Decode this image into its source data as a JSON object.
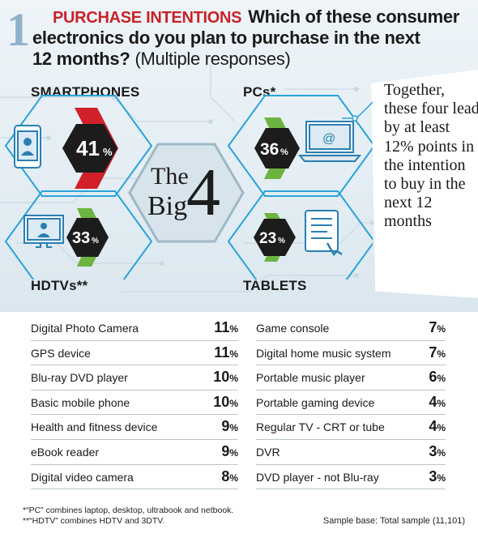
{
  "header": {
    "number": "1",
    "kicker": "PURCHASE INTENTIONS",
    "question_line1": "Which of these consumer",
    "question_line2": "electronics do you plan to purchase in the next",
    "question_line3_bold": "12 months?",
    "question_line3_rest": "(Multiple responses)"
  },
  "center": {
    "line1": "The",
    "line2": "Big",
    "big_number": "4"
  },
  "note": {
    "text": "Together, these four lead by at least 12% points in the intention to buy in the next 12 months"
  },
  "colors": {
    "red": "#d0202a",
    "green": "#6cb33f",
    "hex_outline": "#2aa4d8",
    "dark": "#1c1c1c"
  },
  "chart_data": [
    {
      "type": "bar",
      "title": "The Big 4",
      "categories": [
        "SMARTPHONES",
        "PCs*",
        "HDTVs**",
        "TABLETS"
      ],
      "values": [
        41,
        36,
        33,
        23
      ],
      "unit": "%"
    },
    {
      "type": "table",
      "categories": [
        "Digital Photo Camera",
        "GPS device",
        "Blu-ray DVD player",
        "Basic mobile phone",
        "Health and fitness device",
        "eBook reader",
        "Digital video camera",
        "Game console",
        "Digital home music system",
        "Portable music player",
        "Portable gaming device",
        "Regular TV - CRT or tube",
        "DVR",
        "DVD player - not Blu-ray"
      ],
      "values": [
        11,
        11,
        10,
        10,
        9,
        9,
        8,
        7,
        7,
        6,
        4,
        4,
        3,
        3
      ],
      "unit": "%"
    }
  ],
  "big4": [
    {
      "label": "SMARTPHONES",
      "value": "41",
      "unit": "%",
      "accent": "red",
      "icon": "smartphone-icon"
    },
    {
      "label": "PCs*",
      "value": "36",
      "unit": "%",
      "accent": "green",
      "icon": "laptop-icon"
    },
    {
      "label": "HDTVs**",
      "value": "33",
      "unit": "%",
      "accent": "green",
      "icon": "monitor-icon"
    },
    {
      "label": "TABLETS",
      "value": "23",
      "unit": "%",
      "accent": "green",
      "icon": "tablet-icon"
    }
  ],
  "table_left": [
    {
      "label": "Digital Photo Camera",
      "value": "11",
      "unit": "%"
    },
    {
      "label": "GPS device",
      "value": "11",
      "unit": "%"
    },
    {
      "label": "Blu-ray DVD player",
      "value": "10",
      "unit": "%"
    },
    {
      "label": "Basic mobile phone",
      "value": "10",
      "unit": "%"
    },
    {
      "label": "Health and fitness device",
      "value": "9",
      "unit": "%"
    },
    {
      "label": "eBook reader",
      "value": "9",
      "unit": "%"
    },
    {
      "label": "Digital video camera",
      "value": "8",
      "unit": "%"
    }
  ],
  "table_right": [
    {
      "label": "Game console",
      "value": "7",
      "unit": "%"
    },
    {
      "label": "Digital home music system",
      "value": "7",
      "unit": "%"
    },
    {
      "label": "Portable music player",
      "value": "6",
      "unit": "%"
    },
    {
      "label": "Portable gaming device",
      "value": "4",
      "unit": "%"
    },
    {
      "label": "Regular TV - CRT or tube",
      "value": "4",
      "unit": "%"
    },
    {
      "label": "DVR",
      "value": "3",
      "unit": "%"
    },
    {
      "label": "DVD player - not Blu-ray",
      "value": "3",
      "unit": "%"
    }
  ],
  "footnotes": {
    "pc": "*“PC” combines laptop, desktop, ultrabook and netbook.",
    "hdtv": "**“HDTV” combines HDTV and 3DTV."
  },
  "sample": "Sample base: Total sample (11,101)"
}
